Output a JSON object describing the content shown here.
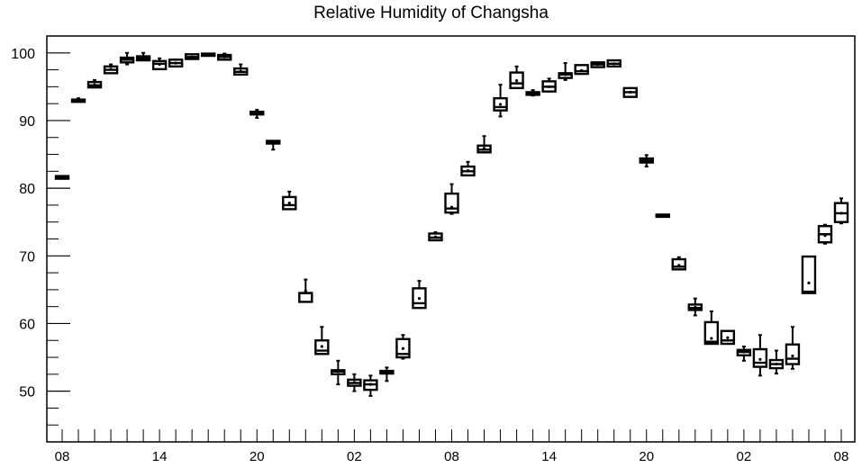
{
  "chart_data": {
    "type": "boxplot",
    "title": "Relative Humidity of Changsha",
    "xlabel": "",
    "ylabel": "",
    "ylim": [
      42.5,
      102.5
    ],
    "y_ticks": [
      50,
      60,
      70,
      80,
      90,
      100
    ],
    "x_tick_labels": [
      "08",
      "14",
      "20",
      "02",
      "08",
      "14",
      "20",
      "02",
      "08"
    ],
    "x_tick_label_positions_hours": [
      0,
      6,
      12,
      18,
      24,
      30,
      36,
      42,
      48
    ],
    "grid": false,
    "boxes": [
      {
        "t": 0,
        "whisker_low": 81.4,
        "q1": 81.4,
        "median": 81.6,
        "q3": 81.8,
        "whisker_high": 81.8,
        "mean": 81.6
      },
      {
        "t": 1,
        "whisker_low": 92.9,
        "q1": 92.9,
        "median": 93.0,
        "q3": 93.1,
        "whisker_high": 93.3,
        "mean": 93.0
      },
      {
        "t": 2,
        "whisker_low": 94.9,
        "q1": 94.9,
        "median": 95.2,
        "q3": 95.7,
        "whisker_high": 96.0,
        "mean": 95.3
      },
      {
        "t": 3,
        "whisker_low": 97.0,
        "q1": 97.0,
        "median": 97.5,
        "q3": 98.0,
        "whisker_high": 98.3,
        "mean": 97.6
      },
      {
        "t": 4,
        "whisker_low": 98.3,
        "q1": 98.6,
        "median": 99.0,
        "q3": 99.3,
        "whisker_high": 100.0,
        "mean": 99.1
      },
      {
        "t": 5,
        "whisker_low": 98.9,
        "q1": 98.9,
        "median": 99.2,
        "q3": 99.5,
        "whisker_high": 100.0,
        "mean": 99.3
      },
      {
        "t": 6,
        "whisker_low": 97.6,
        "q1": 97.6,
        "median": 98.4,
        "q3": 98.8,
        "whisker_high": 99.2,
        "mean": 98.3
      },
      {
        "t": 7,
        "whisker_low": 98.0,
        "q1": 98.0,
        "median": 98.5,
        "q3": 99.0,
        "whisker_high": 99.0,
        "mean": 98.5
      },
      {
        "t": 8,
        "whisker_low": 99.1,
        "q1": 99.1,
        "median": 99.4,
        "q3": 99.8,
        "whisker_high": 99.8,
        "mean": 99.4
      },
      {
        "t": 9,
        "whisker_low": 99.7,
        "q1": 99.7,
        "median": 99.8,
        "q3": 99.9,
        "whisker_high": 99.9,
        "mean": 99.8
      },
      {
        "t": 10,
        "whisker_low": 99.0,
        "q1": 99.0,
        "median": 99.4,
        "q3": 99.7,
        "whisker_high": 99.9,
        "mean": 99.4
      },
      {
        "t": 11,
        "whisker_low": 96.8,
        "q1": 96.8,
        "median": 97.2,
        "q3": 97.7,
        "whisker_high": 98.3,
        "mean": 97.3
      },
      {
        "t": 12,
        "whisker_low": 90.4,
        "q1": 90.9,
        "median": 91.1,
        "q3": 91.3,
        "whisker_high": 91.6,
        "mean": 91.1
      },
      {
        "t": 13,
        "whisker_low": 85.7,
        "q1": 86.6,
        "median": 86.8,
        "q3": 87.0,
        "whisker_high": 87.0,
        "mean": 86.8
      },
      {
        "t": 14,
        "whisker_low": 76.9,
        "q1": 76.9,
        "median": 77.5,
        "q3": 78.7,
        "whisker_high": 79.5,
        "mean": 77.8
      },
      {
        "t": 15,
        "whisker_low": 63.2,
        "q1": 63.2,
        "median": 64.5,
        "q3": 64.5,
        "whisker_high": 66.5,
        "mean": 64.8
      },
      {
        "t": 16,
        "whisker_low": 55.5,
        "q1": 55.5,
        "median": 56.0,
        "q3": 57.5,
        "whisker_high": 59.5,
        "mean": 56.6
      },
      {
        "t": 17,
        "whisker_low": 51.0,
        "q1": 52.5,
        "median": 52.9,
        "q3": 53.1,
        "whisker_high": 54.5,
        "mean": 52.9
      },
      {
        "t": 18,
        "whisker_low": 50.0,
        "q1": 50.8,
        "median": 51.2,
        "q3": 51.7,
        "whisker_high": 52.5,
        "mean": 51.3
      },
      {
        "t": 19,
        "whisker_low": 49.3,
        "q1": 50.2,
        "median": 51.0,
        "q3": 51.6,
        "whisker_high": 52.3,
        "mean": 51.0
      },
      {
        "t": 20,
        "whisker_low": 51.5,
        "q1": 52.6,
        "median": 52.8,
        "q3": 53.0,
        "whisker_high": 53.5,
        "mean": 52.8
      },
      {
        "t": 21,
        "whisker_low": 54.8,
        "q1": 55.0,
        "median": 55.5,
        "q3": 57.7,
        "whisker_high": 58.3,
        "mean": 56.3
      },
      {
        "t": 22,
        "whisker_low": 62.3,
        "q1": 62.3,
        "median": 63.0,
        "q3": 65.2,
        "whisker_high": 66.3,
        "mean": 63.7
      },
      {
        "t": 23,
        "whisker_low": 72.3,
        "q1": 72.3,
        "median": 72.7,
        "q3": 73.3,
        "whisker_high": 73.5,
        "mean": 72.8
      },
      {
        "t": 24,
        "whisker_low": 76.2,
        "q1": 76.4,
        "median": 77.0,
        "q3": 79.2,
        "whisker_high": 80.6,
        "mean": 77.2
      },
      {
        "t": 25,
        "whisker_low": 81.9,
        "q1": 81.9,
        "median": 82.5,
        "q3": 83.2,
        "whisker_high": 83.9,
        "mean": 82.6
      },
      {
        "t": 26,
        "whisker_low": 85.3,
        "q1": 85.3,
        "median": 85.7,
        "q3": 86.3,
        "whisker_high": 87.7,
        "mean": 85.9
      },
      {
        "t": 27,
        "whisker_low": 90.6,
        "q1": 91.5,
        "median": 92.0,
        "q3": 93.3,
        "whisker_high": 95.3,
        "mean": 92.4
      },
      {
        "t": 28,
        "whisker_low": 94.8,
        "q1": 94.8,
        "median": 95.5,
        "q3": 97.1,
        "whisker_high": 98.0,
        "mean": 95.9
      },
      {
        "t": 29,
        "whisker_low": 93.7,
        "q1": 93.8,
        "median": 94.0,
        "q3": 94.2,
        "whisker_high": 94.5,
        "mean": 94.0
      },
      {
        "t": 30,
        "whisker_low": 94.3,
        "q1": 94.3,
        "median": 95.0,
        "q3": 95.8,
        "whisker_high": 96.2,
        "mean": 95.0
      },
      {
        "t": 31,
        "whisker_low": 96.0,
        "q1": 96.3,
        "median": 96.8,
        "q3": 97.0,
        "whisker_high": 98.5,
        "mean": 96.8
      },
      {
        "t": 32,
        "whisker_low": 96.9,
        "q1": 96.9,
        "median": 97.3,
        "q3": 98.2,
        "whisker_high": 98.2,
        "mean": 97.4
      },
      {
        "t": 33,
        "whisker_low": 97.9,
        "q1": 97.9,
        "median": 98.3,
        "q3": 98.6,
        "whisker_high": 98.6,
        "mean": 98.3
      },
      {
        "t": 34,
        "whisker_low": 98.0,
        "q1": 98.0,
        "median": 98.4,
        "q3": 98.9,
        "whisker_high": 98.9,
        "mean": 98.4
      },
      {
        "t": 35,
        "whisker_low": 93.5,
        "q1": 93.5,
        "median": 94.2,
        "q3": 94.8,
        "whisker_high": 94.8,
        "mean": 94.2
      },
      {
        "t": 36,
        "whisker_low": 83.2,
        "q1": 83.8,
        "median": 84.1,
        "q3": 84.4,
        "whisker_high": 84.9,
        "mean": 84.1
      },
      {
        "t": 37,
        "whisker_low": 75.9,
        "q1": 75.9,
        "median": 76.0,
        "q3": 76.1,
        "whisker_high": 76.1,
        "mean": 76.0
      },
      {
        "t": 38,
        "whisker_low": 68.0,
        "q1": 68.0,
        "median": 68.4,
        "q3": 69.5,
        "whisker_high": 69.8,
        "mean": 68.6
      },
      {
        "t": 39,
        "whisker_low": 61.2,
        "q1": 62.0,
        "median": 62.3,
        "q3": 62.8,
        "whisker_high": 63.7,
        "mean": 62.4
      },
      {
        "t": 40,
        "whisker_low": 57.0,
        "q1": 57.0,
        "median": 57.3,
        "q3": 60.2,
        "whisker_high": 61.8,
        "mean": 57.8
      },
      {
        "t": 41,
        "whisker_low": 57.0,
        "q1": 57.0,
        "median": 57.5,
        "q3": 58.9,
        "whisker_high": 58.9,
        "mean": 57.9
      },
      {
        "t": 42,
        "whisker_low": 54.5,
        "q1": 55.3,
        "median": 55.8,
        "q3": 56.1,
        "whisker_high": 56.6,
        "mean": 55.8
      },
      {
        "t": 43,
        "whisker_low": 52.3,
        "q1": 53.6,
        "median": 54.2,
        "q3": 56.2,
        "whisker_high": 58.3,
        "mean": 54.7
      },
      {
        "t": 44,
        "whisker_low": 52.6,
        "q1": 53.4,
        "median": 54.0,
        "q3": 54.6,
        "whisker_high": 56.0,
        "mean": 54.0
      },
      {
        "t": 45,
        "whisker_low": 53.3,
        "q1": 54.0,
        "median": 54.8,
        "q3": 56.9,
        "whisker_high": 59.5,
        "mean": 55.2
      },
      {
        "t": 46,
        "whisker_low": 64.5,
        "q1": 64.5,
        "median": 64.7,
        "q3": 69.9,
        "whisker_high": 69.9,
        "mean": 66.0
      },
      {
        "t": 47,
        "whisker_low": 71.8,
        "q1": 72.0,
        "median": 73.2,
        "q3": 74.4,
        "whisker_high": 74.6,
        "mean": 73.0
      },
      {
        "t": 48,
        "whisker_low": 74.8,
        "q1": 75.0,
        "median": 76.3,
        "q3": 77.8,
        "whisker_high": 78.5,
        "mean": 76.3
      }
    ]
  }
}
